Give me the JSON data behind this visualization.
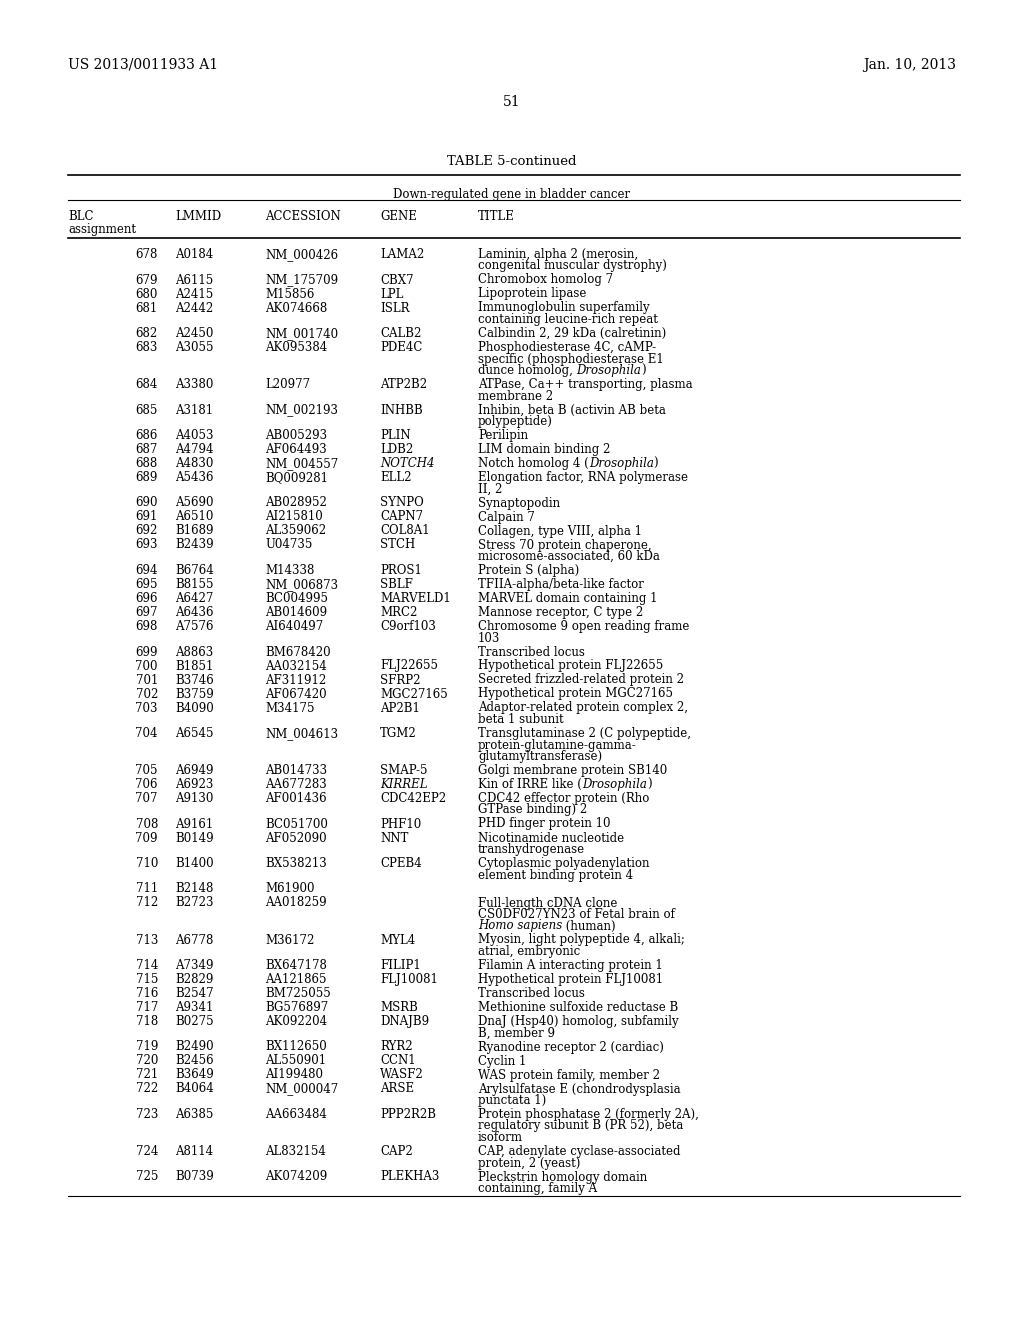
{
  "header_left": "US 2013/0011933 A1",
  "header_right": "Jan. 10, 2013",
  "page_number": "51",
  "table_title": "TABLE 5-continued",
  "table_subtitle": "Down-regulated gene in bladder cancer",
  "rows": [
    [
      "678",
      "A0184",
      "NM_000426",
      "LAMA2",
      "Laminin, alpha 2 (merosin,\ncongenital muscular dystrophy)",
      false,
      false
    ],
    [
      "679",
      "A6115",
      "NM_175709",
      "CBX7",
      "Chromobox homolog 7",
      false,
      false
    ],
    [
      "680",
      "A2415",
      "M15856",
      "LPL",
      "Lipoprotein lipase",
      false,
      false
    ],
    [
      "681",
      "A2442",
      "AK074668",
      "ISLR",
      "Immunoglobulin superfamily\ncontaining leucine-rich repeat",
      false,
      false
    ],
    [
      "682",
      "A2450",
      "NM_001740",
      "CALB2",
      "Calbindin 2, 29 kDa (calretinin)",
      false,
      false
    ],
    [
      "683",
      "A3055",
      "AK095384",
      "PDE4C",
      "Phosphodiesterase 4C, cAMP-\nspecific (phosphodiesterase E1\ndunce homolog, |Drosophila|)",
      false,
      false
    ],
    [
      "684",
      "A3380",
      "L20977",
      "ATP2B2",
      "ATPase, Ca++ transporting, plasma\nmembrane 2",
      false,
      false
    ],
    [
      "685",
      "A3181",
      "NM_002193",
      "INHBB",
      "Inhibin, beta B (activin AB beta\npolypeptide)",
      false,
      false
    ],
    [
      "686",
      "A4053",
      "AB005293",
      "PLIN",
      "Perilipin",
      false,
      false
    ],
    [
      "687",
      "A4794",
      "AF064493",
      "LDB2",
      "LIM domain binding 2",
      false,
      false
    ],
    [
      "688",
      "A4830",
      "NM_004557",
      "NOTCH4",
      "Notch homolog 4 (|Drosophila|)",
      true,
      false
    ],
    [
      "689",
      "A5436",
      "BQ009281",
      "ELL2",
      "Elongation factor, RNA polymerase\nII, 2",
      false,
      false
    ],
    [
      "690",
      "A5690",
      "AB028952",
      "SYNPO",
      "Synaptopodin",
      false,
      false
    ],
    [
      "691",
      "A6510",
      "AI215810",
      "CAPN7",
      "Calpain 7",
      false,
      false
    ],
    [
      "692",
      "B1689",
      "AL359062",
      "COL8A1",
      "Collagen, type VIII, alpha 1",
      false,
      false
    ],
    [
      "693",
      "B2439",
      "U04735",
      "STCH",
      "Stress 70 protein chaperone,\nmicrosome-associated, 60 kDa",
      false,
      false
    ],
    [
      "694",
      "B6764",
      "M14338",
      "PROS1",
      "Protein S (alpha)",
      false,
      false
    ],
    [
      "695",
      "B8155",
      "NM_006873",
      "SBLF",
      "TFIIA-alpha/beta-like factor",
      false,
      false
    ],
    [
      "696",
      "A6427",
      "BC004995",
      "MARVELD1",
      "MARVEL domain containing 1",
      false,
      false
    ],
    [
      "697",
      "A6436",
      "AB014609",
      "MRC2",
      "Mannose receptor, C type 2",
      false,
      false
    ],
    [
      "698",
      "A7576",
      "AI640497",
      "C9orf103",
      "Chromosome 9 open reading frame\n103",
      false,
      false
    ],
    [
      "699",
      "A8863",
      "BM678420",
      "",
      "Transcribed locus",
      false,
      false
    ],
    [
      "700",
      "B1851",
      "AA032154",
      "FLJ22655",
      "Hypothetical protein FLJ22655",
      false,
      false
    ],
    [
      "701",
      "B3746",
      "AF311912",
      "SFRP2",
      "Secreted frizzled-related protein 2",
      false,
      false
    ],
    [
      "702",
      "B3759",
      "AF067420",
      "MGC27165",
      "Hypothetical protein MGC27165",
      false,
      false
    ],
    [
      "703",
      "B4090",
      "M34175",
      "AP2B1",
      "Adaptor-related protein complex 2,\nbeta 1 subunit",
      false,
      false
    ],
    [
      "704",
      "A6545",
      "NM_004613",
      "TGM2",
      "Transglutaminase 2 (C polypeptide,\nprotein-glutamine-gamma-\nglutamyltransferase)",
      false,
      false
    ],
    [
      "705",
      "A6949",
      "AB014733",
      "SMAP-5",
      "Golgi membrane protein SB140",
      false,
      false
    ],
    [
      "706",
      "A6923",
      "AA677283",
      "KIRREL",
      "Kin of IRRE like (|Drosophila|)",
      true,
      false
    ],
    [
      "707",
      "A9130",
      "AF001436",
      "CDC42EP2",
      "CDC42 effector protein (Rho\nGTPase binding) 2",
      false,
      false
    ],
    [
      "708",
      "A9161",
      "BC051700",
      "PHF10",
      "PHD finger protein 10",
      false,
      false
    ],
    [
      "709",
      "B0149",
      "AF052090",
      "NNT",
      "Nicotinamide nucleotide\ntranshydrogenase",
      false,
      false
    ],
    [
      "710",
      "B1400",
      "BX538213",
      "CPEB4",
      "Cytoplasmic polyadenylation\nelement binding protein 4",
      false,
      false
    ],
    [
      "711",
      "B2148",
      "M61900",
      "",
      "",
      false,
      false
    ],
    [
      "712",
      "B2723",
      "AA018259",
      "",
      "Full-length cDNA clone\nCS0DF027YN23 of Fetal brain of\n|Homo sapiens| (human)",
      false,
      false
    ],
    [
      "713",
      "A6778",
      "M36172",
      "MYL4",
      "Myosin, light polypeptide 4, alkali;\natrial, embryonic",
      false,
      false
    ],
    [
      "714",
      "A7349",
      "BX647178",
      "FILIP1",
      "Filamin A interacting protein 1",
      false,
      false
    ],
    [
      "715",
      "B2829",
      "AA121865",
      "FLJ10081",
      "Hypothetical protein FLJ10081",
      false,
      false
    ],
    [
      "716",
      "B2547",
      "BM725055",
      "",
      "Transcribed locus",
      false,
      false
    ],
    [
      "717",
      "A9341",
      "BG576897",
      "MSRB",
      "Methionine sulfoxide reductase B",
      false,
      false
    ],
    [
      "718",
      "B0275",
      "AK092204",
      "DNAJB9",
      "DnaJ (Hsp40) homolog, subfamily\nB, member 9",
      false,
      false
    ],
    [
      "719",
      "B2490",
      "BX112650",
      "RYR2",
      "Ryanodine receptor 2 (cardiac)",
      false,
      false
    ],
    [
      "720",
      "B2456",
      "AL550901",
      "CCN1",
      "Cyclin 1",
      false,
      false
    ],
    [
      "721",
      "B3649",
      "AI199480",
      "WASF2",
      "WAS protein family, member 2",
      false,
      false
    ],
    [
      "722",
      "B4064",
      "NM_000047",
      "ARSE",
      "Arylsulfatase E (chondrodysplasia\npunctata 1)",
      false,
      false
    ],
    [
      "723",
      "A6385",
      "AA663484",
      "PPP2R2B",
      "Protein phosphatase 2 (formerly 2A),\nregulatory subunit B (PR 52), beta\nisoform",
      false,
      false
    ],
    [
      "724",
      "A8114",
      "AL832154",
      "CAP2",
      "CAP, adenylate cyclase-associated\nprotein, 2 (yeast)",
      false,
      false
    ],
    [
      "725",
      "B0739",
      "AK074209",
      "PLEKHA3",
      "Pleckstrin homology domain\ncontaining, family A",
      false,
      false
    ]
  ]
}
